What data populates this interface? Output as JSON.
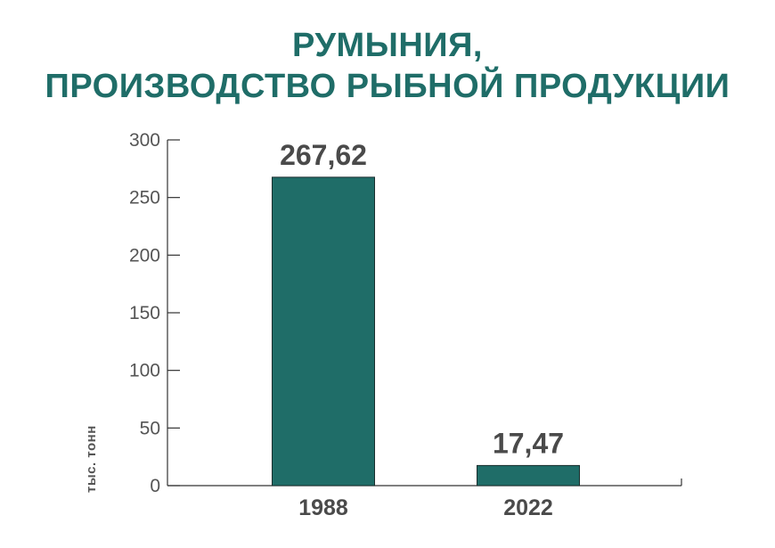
{
  "chart_data": {
    "type": "bar",
    "title_lines": [
      "РУМЫНИЯ,",
      "ПРОИЗВОДСТВО РЫБНОЙ ПРОДУКЦИИ"
    ],
    "categories": [
      "1988",
      "2022"
    ],
    "values": [
      267.62,
      17.47
    ],
    "data_labels": [
      "267,62",
      "17,47"
    ],
    "ylabel": "тыс. тонн",
    "ylim": [
      0,
      300
    ],
    "yticks": [
      0,
      50,
      100,
      150,
      200,
      250,
      300
    ],
    "grid": false,
    "legend": "none",
    "colors": {
      "bar": "#1f6d68",
      "title": "#1f6d68",
      "axis": "#333333",
      "text": "#4a4a4a"
    }
  }
}
